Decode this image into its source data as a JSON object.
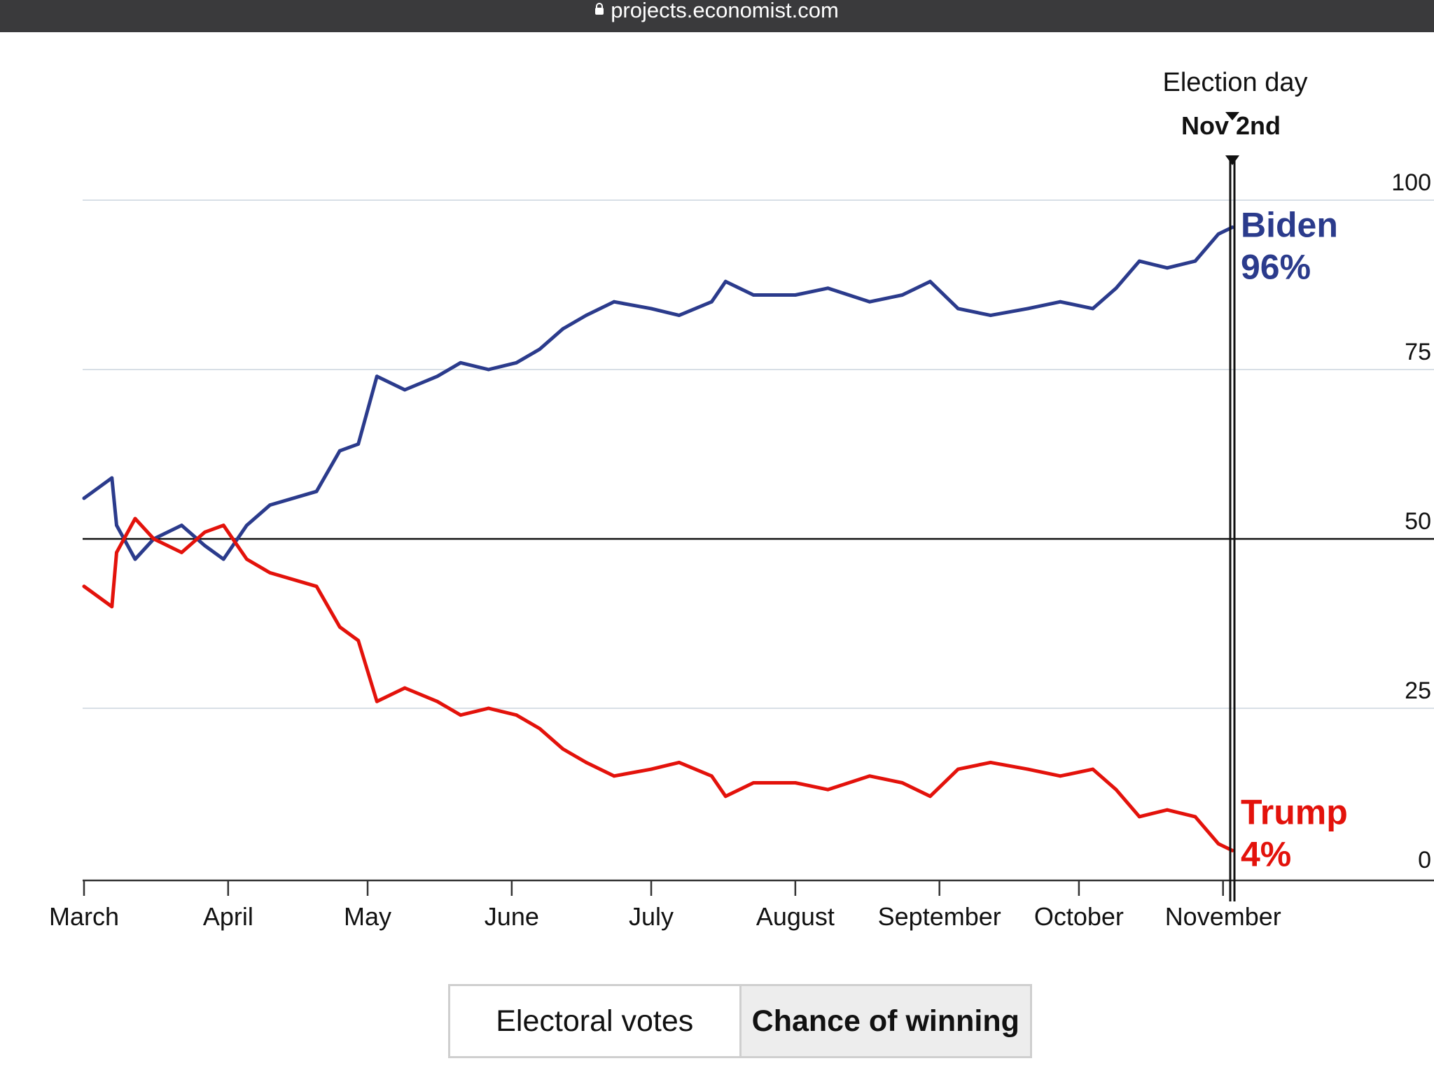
{
  "browser": {
    "url": "projects.economist.com"
  },
  "chart_data": {
    "type": "line",
    "ylim": [
      0,
      100
    ],
    "y_ticks": [
      "0",
      "25",
      "50",
      "75",
      "100"
    ],
    "x_ticks": [
      "March",
      "April",
      "May",
      "June",
      "July",
      "August",
      "September",
      "October",
      "November"
    ],
    "grid": true,
    "annotation": {
      "title": "Election day",
      "date_label": "Nov 2nd"
    },
    "series": [
      {
        "name": "Biden",
        "end_label": "96%",
        "color": "#2b3b8c",
        "points": [
          [
            "2020-03-01",
            56
          ],
          [
            "2020-03-07",
            59
          ],
          [
            "2020-03-08",
            52
          ],
          [
            "2020-03-12",
            47
          ],
          [
            "2020-03-16",
            50
          ],
          [
            "2020-03-22",
            52
          ],
          [
            "2020-03-27",
            49
          ],
          [
            "2020-03-31",
            47
          ],
          [
            "2020-04-05",
            52
          ],
          [
            "2020-04-10",
            55
          ],
          [
            "2020-04-20",
            57
          ],
          [
            "2020-04-25",
            63
          ],
          [
            "2020-04-29",
            64
          ],
          [
            "2020-05-03",
            74
          ],
          [
            "2020-05-09",
            72
          ],
          [
            "2020-05-16",
            74
          ],
          [
            "2020-05-21",
            76
          ],
          [
            "2020-05-27",
            75
          ],
          [
            "2020-06-02",
            76
          ],
          [
            "2020-06-07",
            78
          ],
          [
            "2020-06-12",
            81
          ],
          [
            "2020-06-17",
            83
          ],
          [
            "2020-06-23",
            85
          ],
          [
            "2020-07-01",
            84
          ],
          [
            "2020-07-07",
            83
          ],
          [
            "2020-07-14",
            85
          ],
          [
            "2020-07-17",
            88
          ],
          [
            "2020-07-23",
            86
          ],
          [
            "2020-08-01",
            86
          ],
          [
            "2020-08-08",
            87
          ],
          [
            "2020-08-17",
            85
          ],
          [
            "2020-08-24",
            86
          ],
          [
            "2020-08-30",
            88
          ],
          [
            "2020-09-05",
            84
          ],
          [
            "2020-09-12",
            83
          ],
          [
            "2020-09-20",
            84
          ],
          [
            "2020-09-27",
            85
          ],
          [
            "2020-10-04",
            84
          ],
          [
            "2020-10-09",
            87
          ],
          [
            "2020-10-14",
            91
          ],
          [
            "2020-10-20",
            90
          ],
          [
            "2020-10-26",
            91
          ],
          [
            "2020-10-31",
            95
          ],
          [
            "2020-11-03",
            96
          ]
        ]
      },
      {
        "name": "Trump",
        "end_label": "4%",
        "color": "#e3120b",
        "points": [
          [
            "2020-03-01",
            43
          ],
          [
            "2020-03-07",
            40
          ],
          [
            "2020-03-08",
            48
          ],
          [
            "2020-03-12",
            53
          ],
          [
            "2020-03-16",
            50
          ],
          [
            "2020-03-22",
            48
          ],
          [
            "2020-03-27",
            51
          ],
          [
            "2020-03-31",
            52
          ],
          [
            "2020-04-05",
            47
          ],
          [
            "2020-04-10",
            45
          ],
          [
            "2020-04-20",
            43
          ],
          [
            "2020-04-25",
            37
          ],
          [
            "2020-04-29",
            35
          ],
          [
            "2020-05-03",
            26
          ],
          [
            "2020-05-09",
            28
          ],
          [
            "2020-05-16",
            26
          ],
          [
            "2020-05-21",
            24
          ],
          [
            "2020-05-27",
            25
          ],
          [
            "2020-06-02",
            24
          ],
          [
            "2020-06-07",
            22
          ],
          [
            "2020-06-12",
            19
          ],
          [
            "2020-06-17",
            17
          ],
          [
            "2020-06-23",
            15
          ],
          [
            "2020-07-01",
            16
          ],
          [
            "2020-07-07",
            17
          ],
          [
            "2020-07-14",
            15
          ],
          [
            "2020-07-17",
            12
          ],
          [
            "2020-07-23",
            14
          ],
          [
            "2020-08-01",
            14
          ],
          [
            "2020-08-08",
            13
          ],
          [
            "2020-08-17",
            15
          ],
          [
            "2020-08-24",
            14
          ],
          [
            "2020-08-30",
            12
          ],
          [
            "2020-09-05",
            16
          ],
          [
            "2020-09-12",
            17
          ],
          [
            "2020-09-20",
            16
          ],
          [
            "2020-09-27",
            15
          ],
          [
            "2020-10-04",
            16
          ],
          [
            "2020-10-09",
            13
          ],
          [
            "2020-10-14",
            9
          ],
          [
            "2020-10-20",
            10
          ],
          [
            "2020-10-26",
            9
          ],
          [
            "2020-10-31",
            5
          ],
          [
            "2020-11-03",
            4
          ]
        ]
      }
    ]
  },
  "toggle": {
    "options": [
      "Electoral votes",
      "Chance of winning"
    ],
    "active": "Chance of winning"
  }
}
